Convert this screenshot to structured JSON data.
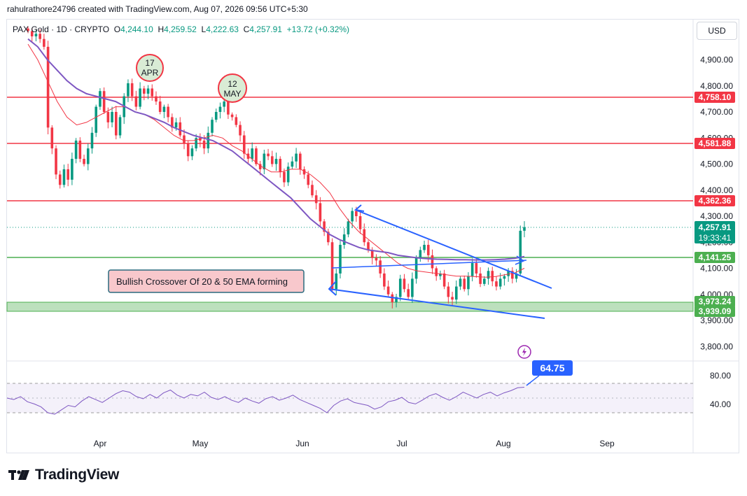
{
  "header": {
    "publisher_line": "rahulrathore24796 created with TradingView.com, Aug 07, 2026 09:56 UTC+5:30"
  },
  "legend": {
    "symbol": "PAX Gold · 1D · CRYPTO",
    "o_label": "O",
    "o": "4,244.10",
    "h_label": "H",
    "h": "4,259.52",
    "l_label": "L",
    "l": "4,222.63",
    "c_label": "C",
    "c": "4,257.91",
    "change": "+13.72 (+0.32%)"
  },
  "currency_button": "USD",
  "annotations": {
    "note": "Bullish Crossover Of 20 & 50 EMA forming",
    "circle_1_day": "17",
    "circle_1_month": "APR",
    "circle_2_day": "12",
    "circle_2_month": "MAY"
  },
  "price_labels": {
    "resistance_1": "4,758.10",
    "resistance_2": "4,581.88",
    "resistance_3": "4,362.36",
    "last_price": "4,257.91",
    "countdown": "19:33:41",
    "support_1": "4,141.25",
    "support_zone_top": "3,973.24",
    "support_zone_bottom": "3,939.09",
    "rsi_value": "64.75"
  },
  "brand": {
    "name": "TradingView"
  },
  "colors": {
    "up": "#089981",
    "down": "#f23645",
    "resistance": "#f23645",
    "support": "#4caf50",
    "support_zone_fill": "#a5d6a7",
    "ema_fast": "#f23645",
    "ema_slow": "#7e57c2",
    "trendline": "#2962ff",
    "rsi": "#7e57c2",
    "rsi_label": "#2962ff"
  },
  "chart_data": [
    {
      "type": "candlestick",
      "series_name": "PAX Gold",
      "interval": "1D",
      "x_axis_ticks": [
        "Apr",
        "May",
        "Jun",
        "Jul",
        "Aug",
        "Sep"
      ],
      "y_axis_ticks": [
        3800,
        3900,
        4000,
        4100,
        4200,
        4300,
        4400,
        4500,
        4600,
        4700,
        4800,
        4900
      ],
      "y_axis_tick_labels": [
        "3,800.00",
        "3,900.00",
        "4,000.00",
        "4,100.00",
        "4,200.00",
        "4,300.00",
        "4,400.00",
        "4,500.00",
        "4,600.00",
        "4,700.00",
        "4,800.00",
        "4,900.00"
      ],
      "ylim": [
        3750,
        5050
      ],
      "grid": false,
      "ohlc_last": {
        "open": 4244.1,
        "high": 4259.52,
        "low": 4222.63,
        "close": 4257.91,
        "change": 13.72,
        "change_pct": 0.32
      },
      "horizontal_levels": [
        4758.1,
        4581.88,
        4362.36,
        4141.25
      ],
      "support_zone": [
        3939.09,
        3973.24
      ],
      "close_path": [
        5010,
        4990,
        5000,
        4980,
        4950,
        4640,
        4560,
        4460,
        4420,
        4480,
        4440,
        4520,
        4590,
        4520,
        4500,
        4560,
        4620,
        4720,
        4780,
        4700,
        4660,
        4700,
        4610,
        4680,
        4760,
        4810,
        4760,
        4720,
        4790,
        4770,
        4790,
        4760,
        4740,
        4700,
        4720,
        4680,
        4640,
        4660,
        4610,
        4580,
        4530,
        4560,
        4600,
        4590,
        4560,
        4620,
        4670,
        4700,
        4720,
        4740,
        4690,
        4680,
        4650,
        4610,
        4540,
        4520,
        4560,
        4500,
        4480,
        4540,
        4530,
        4500,
        4520,
        4470,
        4430,
        4490,
        4510,
        4540,
        4480,
        4460,
        4420,
        4380,
        4350,
        4280,
        4240,
        4200,
        4020,
        4080,
        4190,
        4230,
        4280,
        4320,
        4300,
        4250,
        4200,
        4170,
        4140,
        4130,
        4080,
        4030,
        4000,
        3970,
        3990,
        4060,
        4020,
        3990,
        4060,
        4140,
        4170,
        4190,
        4150,
        4100,
        4070,
        4080,
        4030,
        3990,
        3980,
        4030,
        4060,
        4020,
        4070,
        4120,
        4080,
        4040,
        4060,
        4090,
        4050,
        4030,
        4060,
        4070,
        4090,
        4060,
        4080,
        4244,
        4258
      ],
      "ema_20": [
        4960,
        4900,
        4820,
        4740,
        4680,
        4650,
        4660,
        4680,
        4700,
        4720,
        4720,
        4700,
        4690,
        4670,
        4640,
        4610,
        4590,
        4590,
        4600,
        4610,
        4600,
        4570,
        4550,
        4520,
        4490,
        4470,
        4470,
        4480,
        4480,
        4460,
        4430,
        4390,
        4330,
        4280,
        4240,
        4210,
        4180,
        4150,
        4120,
        4100,
        4090,
        4085,
        4080,
        4075,
        4070,
        4070,
        4068,
        4066,
        4068,
        4075,
        4082,
        4100
      ],
      "ema_50": [
        4980,
        4950,
        4900,
        4860,
        4820,
        4790,
        4770,
        4760,
        4750,
        4740,
        4720,
        4700,
        4690,
        4675,
        4660,
        4640,
        4625,
        4610,
        4600,
        4590,
        4570,
        4550,
        4520,
        4490,
        4460,
        4430,
        4400,
        4370,
        4330,
        4290,
        4260,
        4230,
        4210,
        4195,
        4180,
        4170,
        4165,
        4160,
        4150,
        4145,
        4140,
        4137,
        4135,
        4134,
        4133,
        4133,
        4132,
        4132,
        4133,
        4135,
        4138,
        4145
      ],
      "trendlines": [
        {
          "from": "Jun 12",
          "to": "Aug 18",
          "start": 4340,
          "end": 4020
        },
        {
          "from": "Jun 10",
          "to": "Aug 18",
          "start": 4030,
          "end": 3905
        },
        {
          "from": "Jun 10",
          "to": "Aug 07",
          "start": 4110,
          "end": 4140
        }
      ]
    },
    {
      "type": "line",
      "series_name": "RSI",
      "y_axis_ticks": [
        40,
        80
      ],
      "ylim": [
        10,
        100
      ],
      "bands": [
        30,
        70
      ],
      "last_value": 64.75,
      "values": [
        50,
        48,
        52,
        45,
        42,
        38,
        30,
        28,
        34,
        40,
        38,
        46,
        52,
        48,
        44,
        50,
        56,
        60,
        58,
        52,
        49,
        55,
        50,
        57,
        61,
        54,
        50,
        55,
        53,
        58,
        51,
        48,
        52,
        47,
        44,
        50,
        46,
        43,
        49,
        52,
        47,
        50,
        54,
        48,
        44,
        40,
        36,
        30,
        40,
        46,
        49,
        44,
        42,
        40,
        35,
        38,
        45,
        47,
        51,
        44,
        42,
        47,
        53,
        56,
        51,
        47,
        52,
        58,
        54,
        50,
        55,
        58,
        53,
        57,
        60,
        64,
        64.75
      ]
    }
  ]
}
